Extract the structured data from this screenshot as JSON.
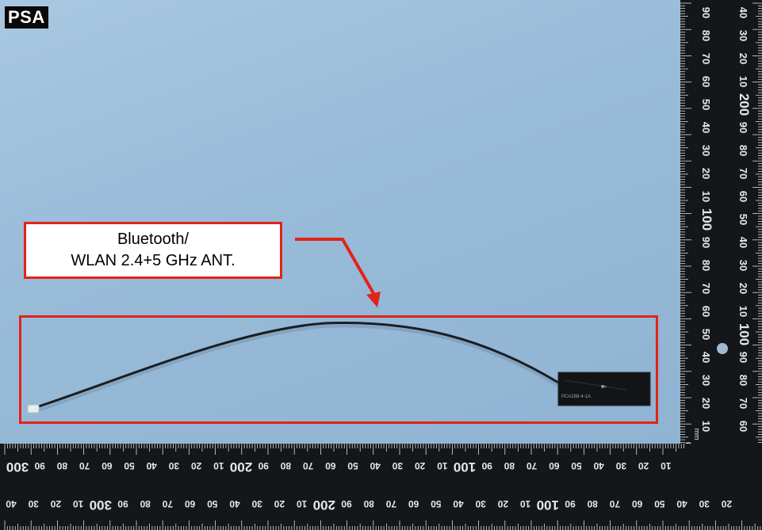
{
  "photo": {
    "tag": "PSA",
    "callout": {
      "line1": "Bluetooth/",
      "line2": "WLAN 2.4+5 GHz ANT."
    },
    "chip": {
      "mark": "■▪",
      "print": "PCA288-4-1A"
    },
    "ruler": {
      "unit": "mm",
      "right_labels": [
        "90",
        "80",
        "70",
        "60",
        "50",
        "40",
        "30",
        "20",
        "10",
        "100",
        "90",
        "80",
        "70",
        "60",
        "50",
        "40",
        "30",
        "20",
        "10"
      ],
      "right_outer_labels": [
        "40",
        "30",
        "20",
        "10",
        "200",
        "90",
        "80",
        "70",
        "60",
        "50",
        "40",
        "30",
        "20",
        "10",
        "100",
        "90",
        "80",
        "70",
        "60",
        "50",
        "40",
        "30",
        "20"
      ],
      "bottom_labels": [
        "300",
        "90",
        "80",
        "70",
        "60",
        "50",
        "40",
        "30",
        "20",
        "10",
        "200",
        "90",
        "80",
        "70",
        "60",
        "50",
        "40",
        "30",
        "20",
        "10",
        "100",
        "90",
        "80",
        "70",
        "60",
        "50",
        "40",
        "30",
        "20",
        "10"
      ],
      "bottom_outer_labels": [
        "40",
        "30",
        "20",
        "10",
        "300",
        "90",
        "80",
        "70",
        "60",
        "50",
        "40",
        "30",
        "20",
        "10",
        "200",
        "90",
        "80",
        "70",
        "60",
        "50",
        "40",
        "30",
        "20",
        "10",
        "100",
        "90",
        "80",
        "70",
        "60",
        "50",
        "40",
        "30",
        "20"
      ]
    },
    "colors": {
      "mat": "#9cbfdc",
      "ruler": "#141619",
      "highlight": "#e2231a",
      "cable": "#1b1e22",
      "chip": "#121416"
    }
  }
}
